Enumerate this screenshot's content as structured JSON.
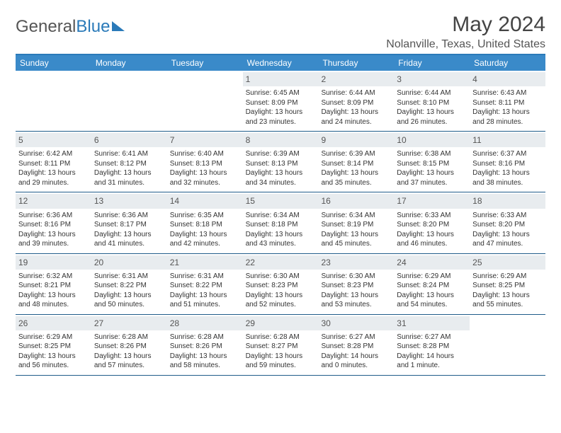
{
  "logo": {
    "text1": "General",
    "text2": "Blue"
  },
  "title": "May 2024",
  "location": "Nolanville, Texas, United States",
  "day_headers": [
    "Sunday",
    "Monday",
    "Tuesday",
    "Wednesday",
    "Thursday",
    "Friday",
    "Saturday"
  ],
  "colors": {
    "header_bg": "#3a8ac9",
    "border": "#1f5c8a",
    "daynum_bg": "#e8ecef"
  },
  "weeks": [
    [
      {
        "empty": true
      },
      {
        "empty": true
      },
      {
        "empty": true
      },
      {
        "day": "1",
        "sunrise": "Sunrise: 6:45 AM",
        "sunset": "Sunset: 8:09 PM",
        "daylight1": "Daylight: 13 hours",
        "daylight2": "and 23 minutes."
      },
      {
        "day": "2",
        "sunrise": "Sunrise: 6:44 AM",
        "sunset": "Sunset: 8:09 PM",
        "daylight1": "Daylight: 13 hours",
        "daylight2": "and 24 minutes."
      },
      {
        "day": "3",
        "sunrise": "Sunrise: 6:44 AM",
        "sunset": "Sunset: 8:10 PM",
        "daylight1": "Daylight: 13 hours",
        "daylight2": "and 26 minutes."
      },
      {
        "day": "4",
        "sunrise": "Sunrise: 6:43 AM",
        "sunset": "Sunset: 8:11 PM",
        "daylight1": "Daylight: 13 hours",
        "daylight2": "and 28 minutes."
      }
    ],
    [
      {
        "day": "5",
        "sunrise": "Sunrise: 6:42 AM",
        "sunset": "Sunset: 8:11 PM",
        "daylight1": "Daylight: 13 hours",
        "daylight2": "and 29 minutes."
      },
      {
        "day": "6",
        "sunrise": "Sunrise: 6:41 AM",
        "sunset": "Sunset: 8:12 PM",
        "daylight1": "Daylight: 13 hours",
        "daylight2": "and 31 minutes."
      },
      {
        "day": "7",
        "sunrise": "Sunrise: 6:40 AM",
        "sunset": "Sunset: 8:13 PM",
        "daylight1": "Daylight: 13 hours",
        "daylight2": "and 32 minutes."
      },
      {
        "day": "8",
        "sunrise": "Sunrise: 6:39 AM",
        "sunset": "Sunset: 8:13 PM",
        "daylight1": "Daylight: 13 hours",
        "daylight2": "and 34 minutes."
      },
      {
        "day": "9",
        "sunrise": "Sunrise: 6:39 AM",
        "sunset": "Sunset: 8:14 PM",
        "daylight1": "Daylight: 13 hours",
        "daylight2": "and 35 minutes."
      },
      {
        "day": "10",
        "sunrise": "Sunrise: 6:38 AM",
        "sunset": "Sunset: 8:15 PM",
        "daylight1": "Daylight: 13 hours",
        "daylight2": "and 37 minutes."
      },
      {
        "day": "11",
        "sunrise": "Sunrise: 6:37 AM",
        "sunset": "Sunset: 8:16 PM",
        "daylight1": "Daylight: 13 hours",
        "daylight2": "and 38 minutes."
      }
    ],
    [
      {
        "day": "12",
        "sunrise": "Sunrise: 6:36 AM",
        "sunset": "Sunset: 8:16 PM",
        "daylight1": "Daylight: 13 hours",
        "daylight2": "and 39 minutes."
      },
      {
        "day": "13",
        "sunrise": "Sunrise: 6:36 AM",
        "sunset": "Sunset: 8:17 PM",
        "daylight1": "Daylight: 13 hours",
        "daylight2": "and 41 minutes."
      },
      {
        "day": "14",
        "sunrise": "Sunrise: 6:35 AM",
        "sunset": "Sunset: 8:18 PM",
        "daylight1": "Daylight: 13 hours",
        "daylight2": "and 42 minutes."
      },
      {
        "day": "15",
        "sunrise": "Sunrise: 6:34 AM",
        "sunset": "Sunset: 8:18 PM",
        "daylight1": "Daylight: 13 hours",
        "daylight2": "and 43 minutes."
      },
      {
        "day": "16",
        "sunrise": "Sunrise: 6:34 AM",
        "sunset": "Sunset: 8:19 PM",
        "daylight1": "Daylight: 13 hours",
        "daylight2": "and 45 minutes."
      },
      {
        "day": "17",
        "sunrise": "Sunrise: 6:33 AM",
        "sunset": "Sunset: 8:20 PM",
        "daylight1": "Daylight: 13 hours",
        "daylight2": "and 46 minutes."
      },
      {
        "day": "18",
        "sunrise": "Sunrise: 6:33 AM",
        "sunset": "Sunset: 8:20 PM",
        "daylight1": "Daylight: 13 hours",
        "daylight2": "and 47 minutes."
      }
    ],
    [
      {
        "day": "19",
        "sunrise": "Sunrise: 6:32 AM",
        "sunset": "Sunset: 8:21 PM",
        "daylight1": "Daylight: 13 hours",
        "daylight2": "and 48 minutes."
      },
      {
        "day": "20",
        "sunrise": "Sunrise: 6:31 AM",
        "sunset": "Sunset: 8:22 PM",
        "daylight1": "Daylight: 13 hours",
        "daylight2": "and 50 minutes."
      },
      {
        "day": "21",
        "sunrise": "Sunrise: 6:31 AM",
        "sunset": "Sunset: 8:22 PM",
        "daylight1": "Daylight: 13 hours",
        "daylight2": "and 51 minutes."
      },
      {
        "day": "22",
        "sunrise": "Sunrise: 6:30 AM",
        "sunset": "Sunset: 8:23 PM",
        "daylight1": "Daylight: 13 hours",
        "daylight2": "and 52 minutes."
      },
      {
        "day": "23",
        "sunrise": "Sunrise: 6:30 AM",
        "sunset": "Sunset: 8:23 PM",
        "daylight1": "Daylight: 13 hours",
        "daylight2": "and 53 minutes."
      },
      {
        "day": "24",
        "sunrise": "Sunrise: 6:29 AM",
        "sunset": "Sunset: 8:24 PM",
        "daylight1": "Daylight: 13 hours",
        "daylight2": "and 54 minutes."
      },
      {
        "day": "25",
        "sunrise": "Sunrise: 6:29 AM",
        "sunset": "Sunset: 8:25 PM",
        "daylight1": "Daylight: 13 hours",
        "daylight2": "and 55 minutes."
      }
    ],
    [
      {
        "day": "26",
        "sunrise": "Sunrise: 6:29 AM",
        "sunset": "Sunset: 8:25 PM",
        "daylight1": "Daylight: 13 hours",
        "daylight2": "and 56 minutes."
      },
      {
        "day": "27",
        "sunrise": "Sunrise: 6:28 AM",
        "sunset": "Sunset: 8:26 PM",
        "daylight1": "Daylight: 13 hours",
        "daylight2": "and 57 minutes."
      },
      {
        "day": "28",
        "sunrise": "Sunrise: 6:28 AM",
        "sunset": "Sunset: 8:26 PM",
        "daylight1": "Daylight: 13 hours",
        "daylight2": "and 58 minutes."
      },
      {
        "day": "29",
        "sunrise": "Sunrise: 6:28 AM",
        "sunset": "Sunset: 8:27 PM",
        "daylight1": "Daylight: 13 hours",
        "daylight2": "and 59 minutes."
      },
      {
        "day": "30",
        "sunrise": "Sunrise: 6:27 AM",
        "sunset": "Sunset: 8:28 PM",
        "daylight1": "Daylight: 14 hours",
        "daylight2": "and 0 minutes."
      },
      {
        "day": "31",
        "sunrise": "Sunrise: 6:27 AM",
        "sunset": "Sunset: 8:28 PM",
        "daylight1": "Daylight: 14 hours",
        "daylight2": "and 1 minute."
      },
      {
        "empty": true
      }
    ]
  ]
}
